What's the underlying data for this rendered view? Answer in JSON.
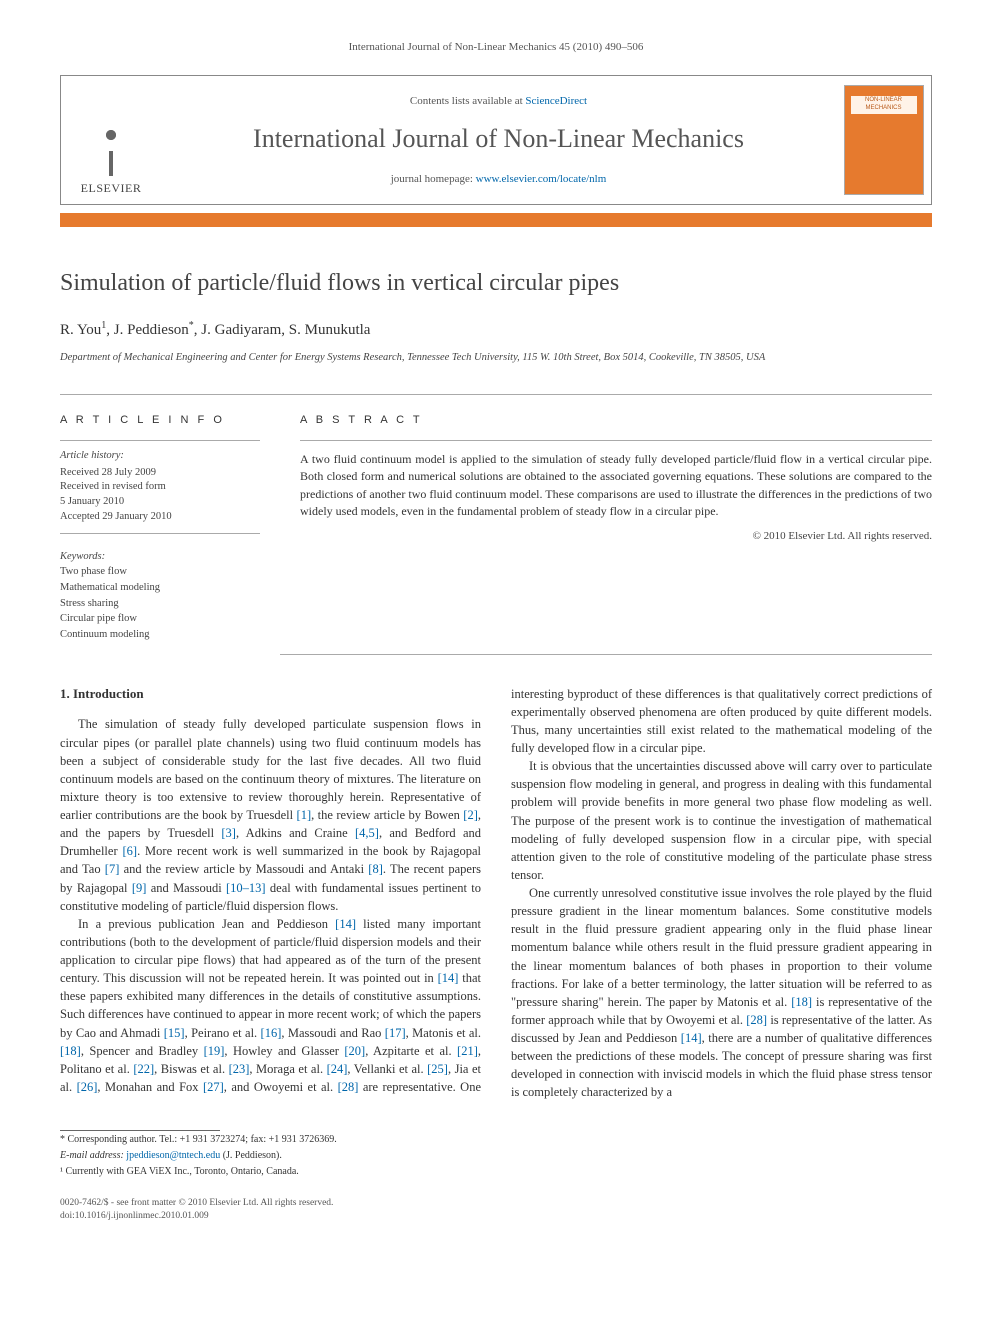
{
  "header_line": "International Journal of Non-Linear Mechanics 45 (2010) 490–506",
  "banner": {
    "publisher_label": "ELSEVIER",
    "contents_prefix": "Contents lists available at ",
    "contents_link": "ScienceDirect",
    "journal_name": "International Journal of Non-Linear Mechanics",
    "homepage_prefix": "journal homepage: ",
    "homepage_link": "www.elsevier.com/locate/nlm",
    "orange_color": "#e67a2e",
    "link_color": "#0066aa"
  },
  "title": "Simulation of particle/fluid flows in vertical circular pipes",
  "authors_html": "R. You ¹, J. Peddieson *, J. Gadiyaram, S. Munukutla",
  "authors": [
    {
      "name": "R. You",
      "note": "1"
    },
    {
      "name": "J. Peddieson",
      "note": "*"
    },
    {
      "name": "J. Gadiyaram",
      "note": ""
    },
    {
      "name": "S. Munukutla",
      "note": ""
    }
  ],
  "affiliation": "Department of Mechanical Engineering and Center for Energy Systems Research, Tennessee Tech University, 115 W. 10th Street, Box 5014, Cookeville, TN 38505, USA",
  "article_info": {
    "heading": "A R T I C L E  I N F O",
    "history_label": "Article history:",
    "history": [
      "Received 28 July 2009",
      "Received in revised form",
      "5 January 2010",
      "Accepted 29 January 2010"
    ],
    "keywords_label": "Keywords:",
    "keywords": [
      "Two phase flow",
      "Mathematical modeling",
      "Stress sharing",
      "Circular pipe flow",
      "Continuum modeling"
    ]
  },
  "abstract": {
    "heading": "A B S T R A C T",
    "text": "A two fluid continuum model is applied to the simulation of steady fully developed particle/fluid flow in a vertical circular pipe. Both closed form and numerical solutions are obtained to the associated governing equations. These solutions are compared to the predictions of another two fluid continuum model. These comparisons are used to illustrate the differences in the predictions of two widely used models, even in the fundamental problem of steady flow in a circular pipe.",
    "copyright": "© 2010 Elsevier Ltd. All rights reserved."
  },
  "section1": {
    "title": "1. Introduction",
    "p1_pre": "The simulation of steady fully developed particulate suspension flows in circular pipes (or parallel plate channels) using two fluid continuum models has been a subject of considerable study for the last five decades. All two fluid continuum models are based on the continuum theory of mixtures. The literature on mixture theory is too extensive to review thoroughly herein. Representative of earlier contributions are the book by Truesdell ",
    "p1_r1": "[1]",
    "p1_a": ", the review article by Bowen ",
    "p1_r2": "[2]",
    "p1_b": ", and the papers by Truesdell ",
    "p1_r3": "[3]",
    "p1_c": ", Adkins and Craine ",
    "p1_r4": "[4,5]",
    "p1_d": ", and Bedford and Drumheller ",
    "p1_r5": "[6]",
    "p1_e": ". More recent work is well summarized in the book by Rajagopal and Tao ",
    "p1_r6": "[7]",
    "p1_f": " and the review article by Massoudi and Antaki ",
    "p1_r7": "[8]",
    "p1_g": ". The recent papers by Rajagopal ",
    "p1_r8": "[9]",
    "p1_h": " and Massoudi ",
    "p1_r9": "[10–13]",
    "p1_i": " deal with fundamental issues pertinent to constitutive modeling of particle/fluid dispersion flows.",
    "p2_pre": "In a previous publication Jean and Peddieson ",
    "p2_r1": "[14]",
    "p2_a": " listed many important contributions (both to the development of particle/fluid dispersion models and their application to circular pipe flows) that had appeared as of the turn of the present century. This discussion will not be repeated herein. It was pointed out in ",
    "p2_r2": "[14]",
    "p2_b": " that these papers exhibited many differences in the details of constitutive assumptions. Such differences have continued to appear in more recent work; of which the papers by Cao and Ahmadi ",
    "p2_r3": "[15]",
    "p2_c": ", Peirano et al. ",
    "p2_r4": "[16]",
    "p2_d": ", Massoudi and Rao ",
    "p2_r5": "[17]",
    "p2_e": ", Matonis et al. ",
    "p2_r6": "[18]",
    "p2_f": ", Spencer and Bradley ",
    "p2_r7": "[19]",
    "p2_g": ", Howley and Glasser ",
    "p2_r8": "[20]",
    "p2_h": ", Azpitarte et al. ",
    "p2_r9": "[21]",
    "p2_i": ", Politano et al. ",
    "p2_r10": "[22]",
    "p2_j": ", Biswas et al. ",
    "p2_r11": "[23]",
    "p2_k": ", Moraga et al. ",
    "p2_r12": "[24]",
    "p2_l": ", Vellanki et al. ",
    "p2_r13": "[25]",
    "p2_m": ", Jia et al. ",
    "p2_r14": "[26]",
    "p2_n": ", Monahan and Fox ",
    "p2_r15": "[27]",
    "p2_o": ", and Owoyemi et al. ",
    "p2_r16": "[28]",
    "p2_p": " are representative. One interesting byproduct of these differences is that qualitatively correct predictions of experimentally observed phenomena are often produced by quite different models. Thus, many uncertainties still exist related to the mathematical modeling of the fully developed flow in a circular pipe.",
    "p3": "It is obvious that the uncertainties discussed above will carry over to particulate suspension flow modeling in general, and progress in dealing with this fundamental problem will provide benefits in more general two phase flow modeling as well. The purpose of the present work is to continue the investigation of mathematical modeling of fully developed suspension flow in a circular pipe, with special attention given to the role of constitutive modeling of the particulate phase stress tensor.",
    "p4_pre": "One currently unresolved constitutive issue involves the role played by the fluid pressure gradient in the linear momentum balances. Some constitutive models result in the fluid pressure gradient appearing only in the fluid phase linear momentum balance while others result in the fluid pressure gradient appearing in the linear momentum balances of both phases in proportion to their volume fractions. For lake of a better terminology, the latter situation will be referred to as \"pressure sharing\" herein. The paper by Matonis et al. ",
    "p4_r1": "[18]",
    "p4_a": " is representative of the former approach while that by Owoyemi et al. ",
    "p4_r2": "[28]",
    "p4_b": " is representative of the latter. As discussed by Jean and Peddieson ",
    "p4_r3": "[14]",
    "p4_c": ", there are a number of qualitative differences between the predictions of these models. The concept of pressure sharing was first developed in connection with inviscid models in which the fluid phase stress tensor is completely characterized by a"
  },
  "footnotes": {
    "corr": "* Corresponding author. Tel.: +1 931 3723274; fax: +1 931 3726369.",
    "email_label": "E-mail address: ",
    "email": "jpeddieson@tntech.edu",
    "email_suffix": " (J. Peddieson).",
    "note1": "¹ Currently with GEA ViEX Inc., Toronto, Ontario, Canada."
  },
  "footer": {
    "line1": "0020-7462/$ - see front matter © 2010 Elsevier Ltd. All rights reserved.",
    "line2": "doi:10.1016/j.ijnonlinmec.2010.01.009"
  }
}
